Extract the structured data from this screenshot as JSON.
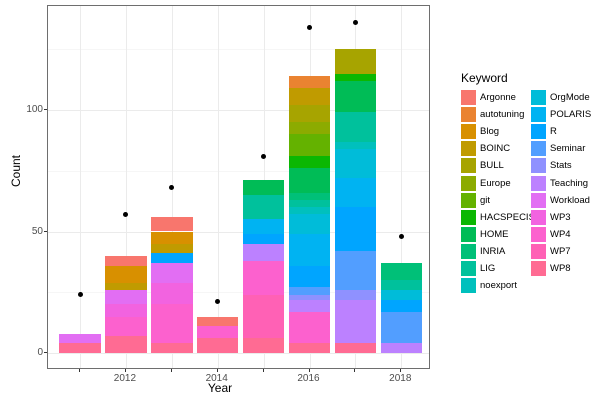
{
  "axes": {
    "x_label": "Year",
    "y_label": "Count",
    "y_major_ticks": [
      0,
      50,
      100
    ],
    "y_minor_ticks": [
      25,
      75,
      125
    ],
    "x_tick_years": [
      2011,
      2012,
      2013,
      2014,
      2015,
      2016,
      2017,
      2018
    ],
    "x_labeled_years": [
      2012,
      2014,
      2016,
      2018
    ],
    "ylim": [
      0,
      145
    ],
    "grid": "on",
    "tick_color": "#4d4d4d",
    "dot_color": "#000000"
  },
  "legend": {
    "title": "Keyword",
    "position": "right",
    "columns": 2,
    "rows_per_column": 12
  },
  "chart_data": {
    "type": "bar",
    "subtype": "stacked-with-scatter-overlay",
    "title": "",
    "xlabel": "Year",
    "ylabel": "Count",
    "ylim": [
      0,
      145
    ],
    "legend_position": "right",
    "stack_order": "first series at top of bar, last series at bottom",
    "categories": [
      2011,
      2012,
      2013,
      2014,
      2015,
      2016,
      2017,
      2018
    ],
    "series": [
      {
        "name": "Argonne",
        "color": "#F8766D",
        "values": [
          0,
          4,
          6,
          4,
          0,
          0,
          0,
          0
        ]
      },
      {
        "name": "autotuning",
        "color": "#EA8331",
        "values": [
          0,
          0,
          0,
          0,
          0,
          5,
          0,
          0
        ]
      },
      {
        "name": "Blog",
        "color": "#D89000",
        "values": [
          0,
          7,
          5,
          0,
          0,
          0,
          0,
          0
        ]
      },
      {
        "name": "BOINC",
        "color": "#C09B00",
        "values": [
          0,
          3,
          4,
          0,
          0,
          7,
          0,
          0
        ]
      },
      {
        "name": "BULL",
        "color": "#A7A400",
        "values": [
          0,
          0,
          0,
          0,
          0,
          7,
          10,
          0
        ]
      },
      {
        "name": "Europe",
        "color": "#8CAB00",
        "values": [
          0,
          0,
          0,
          0,
          0,
          5,
          0,
          0
        ]
      },
      {
        "name": "git",
        "color": "#64B200",
        "values": [
          0,
          0,
          0,
          0,
          0,
          9,
          0,
          0
        ]
      },
      {
        "name": "HACSPECIS",
        "color": "#0BB702",
        "values": [
          0,
          0,
          0,
          0,
          0,
          5,
          3,
          0
        ]
      },
      {
        "name": "HOME",
        "color": "#00BC56",
        "values": [
          0,
          0,
          0,
          0,
          6,
          10,
          13,
          0
        ]
      },
      {
        "name": "INRIA",
        "color": "#00C078",
        "values": [
          0,
          0,
          0,
          0,
          0,
          3,
          0,
          7
        ]
      },
      {
        "name": "LIG",
        "color": "#00C19C",
        "values": [
          0,
          0,
          0,
          0,
          10,
          3,
          12,
          4
        ]
      },
      {
        "name": "noexport",
        "color": "#00C0BD",
        "values": [
          0,
          0,
          0,
          0,
          0,
          3,
          3,
          0
        ]
      },
      {
        "name": "OrgMode",
        "color": "#00BCD9",
        "values": [
          0,
          0,
          0,
          0,
          0,
          8,
          12,
          4
        ]
      },
      {
        "name": "POLARIS",
        "color": "#00B3F2",
        "values": [
          0,
          0,
          0,
          0,
          6,
          13,
          12,
          0
        ]
      },
      {
        "name": "R",
        "color": "#00A5FF",
        "values": [
          0,
          0,
          4,
          0,
          4,
          9,
          18,
          5
        ]
      },
      {
        "name": "Seminar",
        "color": "#529EFF",
        "values": [
          0,
          0,
          0,
          0,
          0,
          3,
          16,
          13
        ]
      },
      {
        "name": "Stats",
        "color": "#8F91FF",
        "values": [
          0,
          0,
          0,
          0,
          0,
          2,
          4,
          0
        ]
      },
      {
        "name": "Teaching",
        "color": "#BC81FF",
        "values": [
          0,
          0,
          0,
          0,
          7,
          5,
          18,
          4
        ]
      },
      {
        "name": "Workload",
        "color": "#E26EF3",
        "values": [
          4,
          6,
          8,
          0,
          0,
          0,
          0,
          0
        ]
      },
      {
        "name": "WP3",
        "color": "#F263E0",
        "values": [
          0,
          5,
          9,
          0,
          0,
          0,
          0,
          0
        ]
      },
      {
        "name": "WP4",
        "color": "#FC61CE",
        "values": [
          0,
          8,
          16,
          5,
          14,
          13,
          0,
          0
        ]
      },
      {
        "name": "WP7",
        "color": "#FF61B5",
        "values": [
          0,
          0,
          0,
          0,
          18,
          0,
          0,
          0
        ]
      },
      {
        "name": "WP8",
        "color": "#FF6B93",
        "values": [
          4,
          7,
          4,
          6,
          6,
          4,
          4,
          0
        ]
      }
    ],
    "bar_totals": [
      8,
      40,
      56,
      15,
      71,
      114,
      125,
      37
    ],
    "points_overlay": {
      "type": "scatter",
      "color": "#000000",
      "x": [
        2011,
        2012,
        2013,
        2014,
        2015,
        2016,
        2017,
        2018
      ],
      "y": [
        24,
        57,
        68,
        21,
        81,
        134,
        136,
        48
      ]
    }
  }
}
